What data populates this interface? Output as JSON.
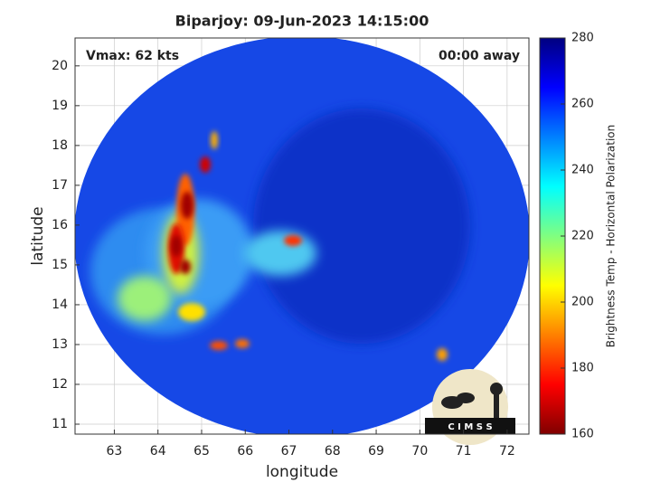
{
  "chart_data": {
    "type": "image",
    "title": "Biparjoy: 09-Jun-2023 14:15:00",
    "annotations": [
      "Vmax: 62 kts",
      "00:00 away"
    ],
    "x_label": "longitude",
    "y_label": "latitude",
    "xlim": [
      62.1,
      72.5
    ],
    "xticks": [
      63,
      64,
      65,
      66,
      67,
      68,
      69,
      70,
      71,
      72
    ],
    "ylim": [
      10.75,
      20.7
    ],
    "yticks": [
      11,
      12,
      13,
      14,
      15,
      16,
      17,
      18,
      19,
      20
    ],
    "grid": true,
    "colorbar": {
      "label": "Brightness Temp - Horizontal Polarization",
      "lim": [
        160,
        280
      ],
      "ticks": [
        160,
        180,
        200,
        220,
        240,
        260,
        280
      ],
      "colormap": [
        "#800000",
        "#ff0000",
        "#ff8000",
        "#ffff00",
        "#80ff80",
        "#00ffff",
        "#0080ff",
        "#0000ff",
        "#000080"
      ]
    },
    "logo_text": "C I M S S"
  }
}
